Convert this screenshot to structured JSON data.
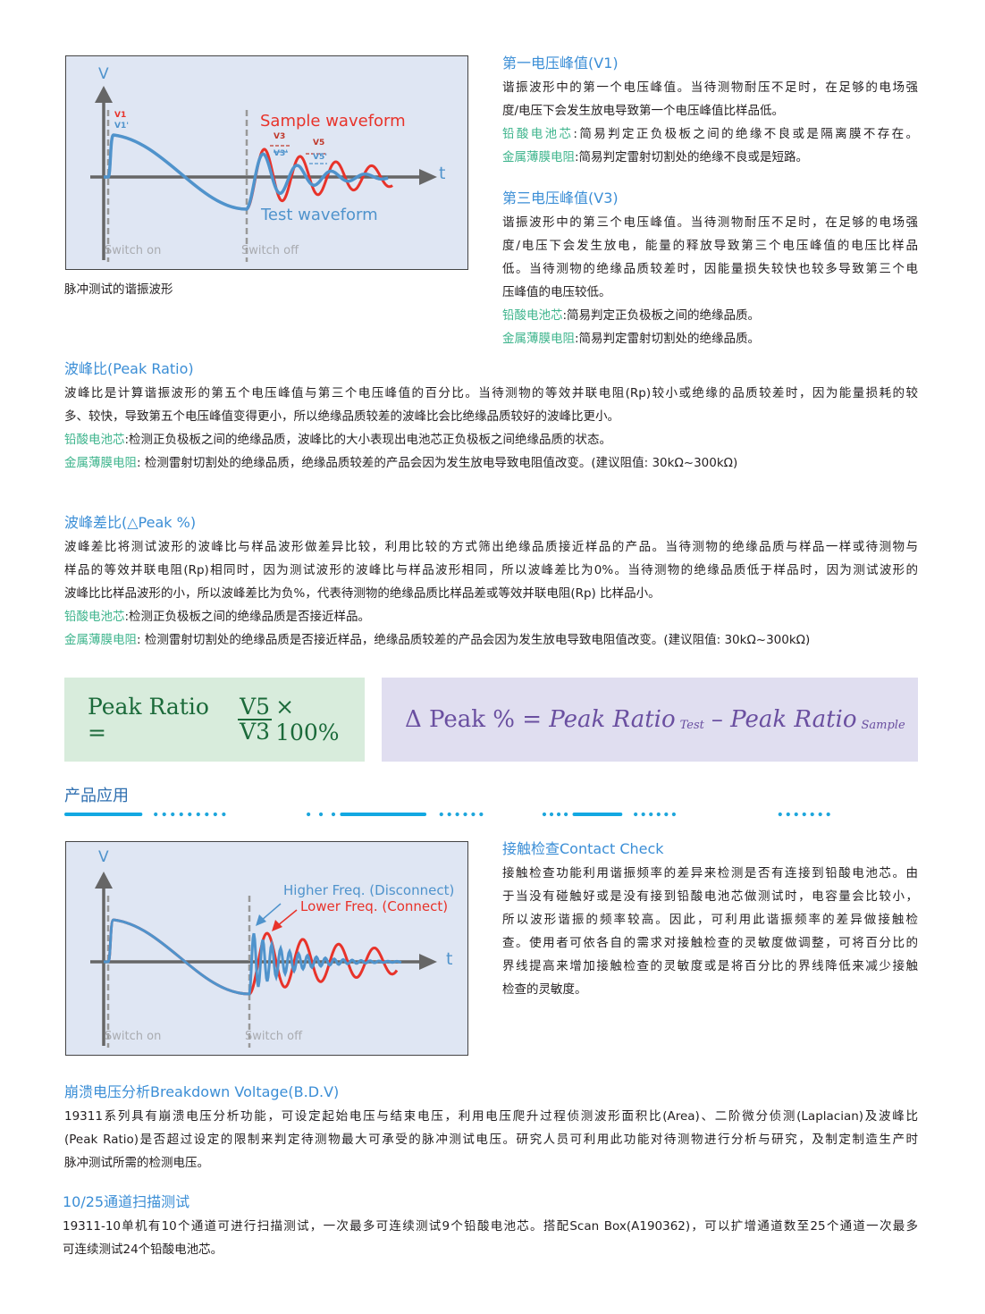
{
  "figure1": {
    "v": "V",
    "t": "t",
    "v1": "V1",
    "v1p": "V1'",
    "v3": "V3",
    "v3p": "V3'",
    "v5": "V5",
    "v5p": "V5'",
    "sample": "Sample waveform",
    "test": "Test waveform",
    "switch_on": "Switch on",
    "switch_off": "Switch off",
    "caption": "脉冲测试的谐振波形"
  },
  "figure2": {
    "v": "V",
    "t": "t",
    "higher": "Higher Freq. (Disconnect)",
    "lower": "Lower Freq. (Connect)",
    "switch_on": "Switch on",
    "switch_off": "Switch off"
  },
  "colors": {
    "title": "#3b8ed6",
    "label_green": "#3db48c",
    "sample_red": "#e8332a",
    "test_blue": "#4f93cc",
    "ratio_box": "#d8ecdc",
    "ratio_text": "#1b6a3a",
    "delta_box": "#e0def0",
    "delta_text": "#6a4fa0"
  },
  "v1": {
    "title": "第一电压峰值(V1)",
    "lines": [
      "谐振波形中的第一个电压峰值。当待测物耐压不足时，在足够的电场强",
      "度/电压下会发生放电导致第一个电压峰值比样品低。"
    ],
    "notes": [
      {
        "label": "铅酸电池芯",
        "text": ":简易判定正负极板之间的绝缘不良或是隔离膜不存在。"
      },
      {
        "label": "金属薄膜电阻",
        "text": ":简易判定雷射切割处的绝缘不良或是短路。"
      }
    ]
  },
  "v3": {
    "title": "第三电压峰值(V3)",
    "lines": [
      "谐振波形中的第三个电压峰值。当待测物耐压不足时，在足够的电场强",
      "度/电压下会发生放电，能量的释放导致第三个电压峰值的电压比样品",
      "低。当待测物的绝缘品质较差时，因能量损失较快也较多导致第三个电",
      "压峰值的电压较低。"
    ],
    "notes": [
      {
        "label": "铅酸电池芯",
        "text": ":简易判定正负极板之间的绝缘品质。"
      },
      {
        "label": "金属薄膜电阻",
        "text": ":简易判定雷射切割处的绝缘品质。"
      }
    ]
  },
  "peak_ratio": {
    "title": "波峰比(Peak Ratio)",
    "lines": [
      "波峰比是计算谐振波形的第五个电压峰值与第三个电压峰值的百分比。当待测物的等效并联电阻(Rp)较小或绝缘的品质较差时，因为能量损耗的较",
      "多、较快，导致第五个电压峰值变得更小，所以绝缘品质较差的波峰比会比绝缘品质较好的波峰比更小。"
    ],
    "notes": [
      {
        "label": "铅酸电池芯",
        "text": ":检测正负极板之间的绝缘品质，波峰比的大小表现出电池芯正负极板之间绝缘品质的状态。"
      },
      {
        "label": "金属薄膜电阻",
        "text": ": 检测雷射切割处的绝缘品质，绝缘品质较差的产品会因为发生放电导致电阻值改变。(建议阻值: 30kΩ~300kΩ)"
      }
    ]
  },
  "delta_peak": {
    "title": "波峰差比(△Peak %)",
    "lines": [
      "波峰差比将测试波形的波峰比与样品波形做差异比较，利用比较的方式筛出绝缘品质接近样品的产品。当待测物的绝缘品质与样品一样或待测物与",
      "样品的等效并联电阻(Rp)相同时，因为测试波形的波峰比与样品波形相同，所以波峰差比为0%。当待测物的绝缘品质低于样品时，因为测试波形的",
      "波峰比比样品波形的小，所以波峰差比为负%，代表待测物的绝缘品质比样品差或等效并联电阻(Rp) 比样品小。"
    ],
    "notes": [
      {
        "label": "铅酸电池芯",
        "text": ":检测正负极板之间的绝缘品质是否接近样品。"
      },
      {
        "label": "金属薄膜电阻",
        "text": ": 检测雷射切割处的绝缘品质是否接近样品，绝缘品质较差的产品会因为发生放电导致电阻值改变。(建议阻值: 30kΩ~300kΩ)"
      }
    ]
  },
  "formula_ratio": {
    "lhs": "Peak Ratio =",
    "num": "V5",
    "den": "V3",
    "rhs": "× 100%"
  },
  "formula_delta": {
    "lhs": "Δ Peak % =",
    "term1": "Peak Ratio",
    "sub1": "Test",
    "minus": "–",
    "term2": "Peak Ratio",
    "sub2": "Sample"
  },
  "applications": {
    "title": "产品应用"
  },
  "contact": {
    "title": "接触检查Contact Check",
    "lines": [
      "接触检查功能利用谐振频率的差异来检测是否有连接到铅酸电池芯。由",
      "于当没有碰触好或是没有接到铅酸电池芯做测试时，电容量会比较小，",
      "所以波形谐振的频率较高。因此，可利用此谐振频率的差异做接触检",
      "查。使用者可依各自的需求对接触检查的灵敏度做调整，可将百分比的",
      "界线提高来增加接触检查的灵敏度或是将百分比的界线降低来减少接触",
      "检查的灵敏度。"
    ]
  },
  "bdv": {
    "title": "崩溃电压分析Breakdown Voltage(B.D.V)",
    "lines": [
      "19311系列具有崩溃电压分析功能，可设定起始电压与结束电压，利用电压爬升过程侦测波形面积比(Area)、二阶微分侦测(Laplacian)及波峰比",
      "(Peak Ratio)是否超过设定的限制来判定待测物最大可承受的脉冲测试电压。研究人员可利用此功能对待测物进行分析与研究，及制定制造生产时",
      "脉冲测试所需的检测电压。"
    ]
  },
  "scan": {
    "title": "10/25通道扫描测试",
    "lines": [
      "19311-10单机有10个通道可进行扫描测试，一次最多可连续测试9个铅酸电池芯。搭配Scan Box(A190362)，可以扩增通道数至25个通道一次最多",
      "可连续测试24个铅酸电池芯。"
    ]
  }
}
